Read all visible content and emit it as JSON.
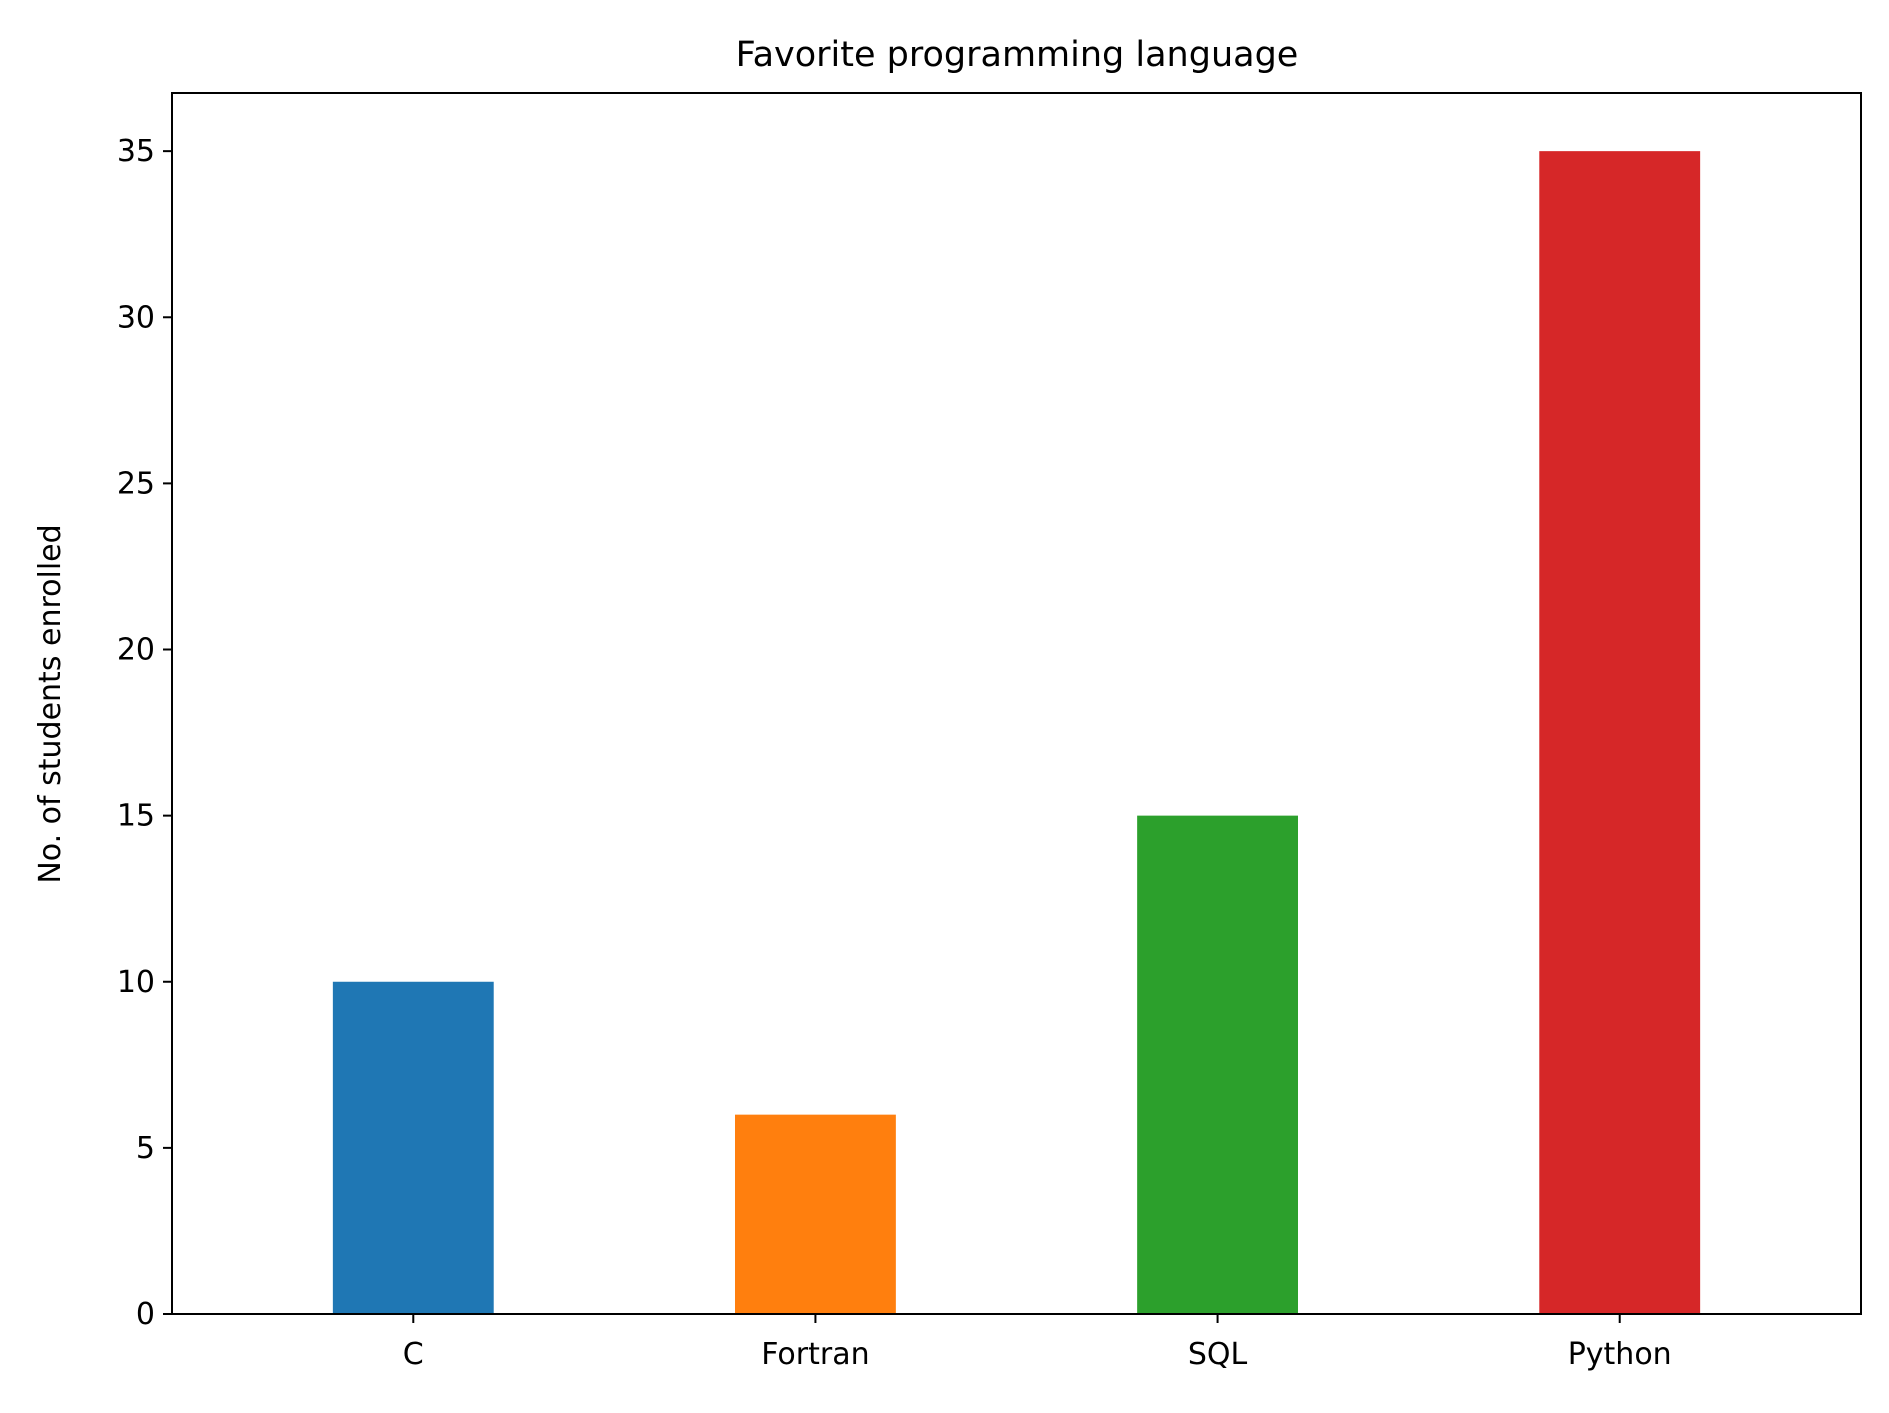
{
  "chart_data": {
    "type": "bar",
    "title": "Favorite programming language",
    "xlabel": "",
    "ylabel": "No. of students enrolled",
    "categories": [
      "C",
      "Fortran",
      "SQL",
      "Python"
    ],
    "values": [
      10,
      6,
      15,
      35
    ],
    "colors": [
      "#1f77b4",
      "#ff7f0e",
      "#2ca02c",
      "#d62728"
    ],
    "ylim": [
      0,
      36.75
    ],
    "yticks": [
      0,
      5,
      10,
      15,
      20,
      25,
      30,
      35
    ],
    "grid": false,
    "legend": "none"
  }
}
